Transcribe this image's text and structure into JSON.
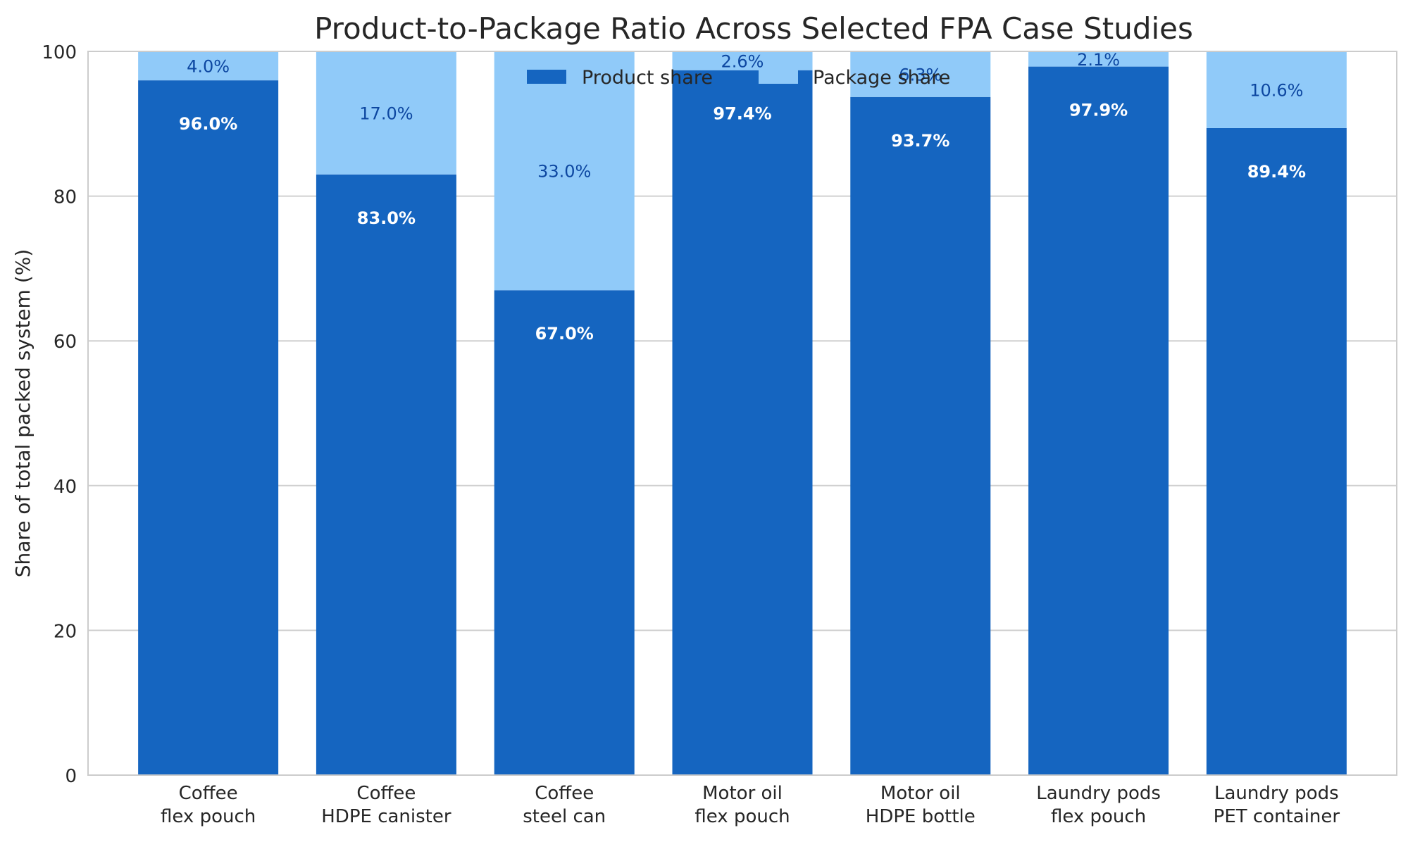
{
  "chart_data": {
    "type": "bar",
    "stacked": true,
    "title": "Product-to-Package Ratio Across Selected FPA Case Studies",
    "ylabel": "Share of total packed system (%)",
    "xlabel": "",
    "ylim": [
      0,
      100
    ],
    "yticks": [
      0,
      20,
      40,
      60,
      80,
      100
    ],
    "grid": "y",
    "legend_position": "top-center",
    "categories": [
      [
        "Coffee",
        "flex pouch"
      ],
      [
        "Coffee",
        "HDPE canister"
      ],
      [
        "Coffee",
        "steel can"
      ],
      [
        "Motor oil",
        "flex pouch"
      ],
      [
        "Motor oil",
        "HDPE bottle"
      ],
      [
        "Laundry pods",
        "flex pouch"
      ],
      [
        "Laundry pods",
        "PET container"
      ]
    ],
    "series": [
      {
        "name": "Product share",
        "color": "#1565c0",
        "label_color": "#ffffff",
        "values": [
          96.0,
          83.0,
          67.0,
          97.4,
          93.7,
          97.9,
          89.4
        ],
        "labels": [
          "96.0%",
          "83.0%",
          "67.0%",
          "97.4%",
          "93.7%",
          "97.9%",
          "89.4%"
        ]
      },
      {
        "name": "Package share",
        "color": "#90caf9",
        "label_color": "#0d47a1",
        "values": [
          4.0,
          17.0,
          33.0,
          2.6,
          6.3,
          2.1,
          10.6
        ],
        "labels": [
          "4.0%",
          "17.0%",
          "33.0%",
          "2.6%",
          "6.3%",
          "2.1%",
          "10.6%"
        ]
      }
    ]
  }
}
